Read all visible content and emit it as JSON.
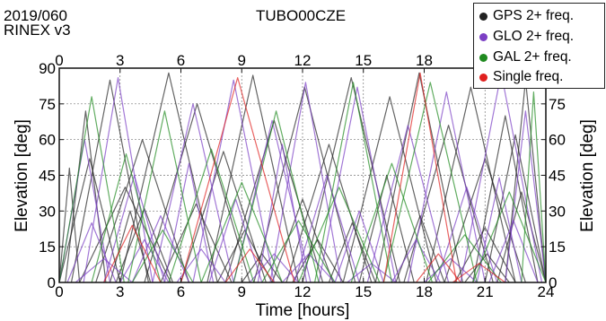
{
  "header": {
    "date": "2019/060",
    "rinex": "RINEX v3",
    "title": "TUBO00CZE"
  },
  "colors": {
    "gps": "#222222",
    "glo": "#7b3fc4",
    "gal": "#1f8a1f",
    "single": "#e0201e"
  },
  "chart_data": {
    "type": "line",
    "title": "TUBO00CZE",
    "xlabel": "Time [hours]",
    "ylabel": "Elevation [deg]",
    "y2label": "Elevation [deg]",
    "xlim": [
      0,
      24
    ],
    "ylim": [
      0,
      90
    ],
    "xticks": [
      "0",
      "3",
      "6",
      "9",
      "12",
      "15",
      "18",
      "21",
      "24"
    ],
    "xticks_top": [
      "0",
      "3",
      "6",
      "9",
      "12",
      "15",
      "18",
      "21",
      "24"
    ],
    "yticks": [
      "0",
      "15",
      "30",
      "45",
      "60",
      "75",
      "90"
    ],
    "yticks_right": [
      "0",
      "15",
      "30",
      "45",
      "60",
      "75",
      "90"
    ],
    "grid": true,
    "legend_position": "top-right",
    "legend": [
      {
        "key": "gps",
        "label": "GPS 2+ freq."
      },
      {
        "key": "glo",
        "label": "GLO 2+ freq."
      },
      {
        "key": "gal",
        "label": "GAL 2+ freq."
      },
      {
        "key": "single",
        "label": "Single freq."
      }
    ],
    "series": [
      {
        "name": "GPS 2+ freq.",
        "key": "gps",
        "passes": [
          [
            0.0,
            1.0,
            48
          ],
          [
            0.3,
            2.3,
            72
          ],
          [
            0.6,
            4.4,
            85
          ],
          [
            1.0,
            5.5,
            40
          ],
          [
            1.8,
            6.4,
            60
          ],
          [
            2.5,
            4.5,
            30
          ],
          [
            3.0,
            7.8,
            88
          ],
          [
            4.2,
            9.4,
            75
          ],
          [
            5.0,
            8.5,
            33
          ],
          [
            6.0,
            10.2,
            55
          ],
          [
            7.3,
            11.8,
            87
          ],
          [
            8.2,
            13.0,
            68
          ],
          [
            9.0,
            11.0,
            12
          ],
          [
            9.6,
            14.6,
            82
          ],
          [
            10.5,
            13.5,
            35
          ],
          [
            11.2,
            15.4,
            58
          ],
          [
            12.0,
            16.8,
            86
          ],
          [
            13.3,
            15.6,
            25
          ],
          [
            14.0,
            18.6,
            78
          ],
          [
            14.8,
            17.5,
            45
          ],
          [
            15.6,
            19.9,
            88
          ],
          [
            16.6,
            19.0,
            28
          ],
          [
            17.0,
            21.4,
            66
          ],
          [
            18.1,
            22.5,
            82
          ],
          [
            19.0,
            23.0,
            52
          ],
          [
            20.0,
            22.2,
            12
          ],
          [
            20.4,
            23.6,
            70
          ],
          [
            21.0,
            24.0,
            62
          ],
          [
            21.6,
            24.0,
            38
          ],
          [
            0.0,
            3.0,
            52
          ],
          [
            2.8,
            5.6,
            31
          ],
          [
            7.8,
            10.5,
            22
          ],
          [
            11.5,
            14.0,
            18
          ],
          [
            19.5,
            22.5,
            23
          ],
          [
            22.0,
            24.0,
            85
          ]
        ]
      },
      {
        "name": "GLO 2+ freq.",
        "key": "glo",
        "passes": [
          [
            0.0,
            2.5,
            60
          ],
          [
            0.8,
            3.6,
            10
          ],
          [
            1.2,
            4.6,
            86
          ],
          [
            2.2,
            5.2,
            45
          ],
          [
            3.6,
            6.4,
            28
          ],
          [
            4.6,
            8.6,
            75
          ],
          [
            5.8,
            8.2,
            14
          ],
          [
            6.6,
            10.6,
            85
          ],
          [
            7.4,
            10.0,
            35
          ],
          [
            8.6,
            12.4,
            68
          ],
          [
            9.4,
            11.8,
            12
          ],
          [
            10.4,
            13.9,
            84
          ],
          [
            11.6,
            14.8,
            45
          ],
          [
            12.8,
            16.6,
            82
          ],
          [
            13.6,
            16.0,
            30
          ],
          [
            15.2,
            19.2,
            66
          ],
          [
            16.4,
            18.8,
            18
          ],
          [
            17.2,
            21.0,
            80
          ],
          [
            18.6,
            21.6,
            40
          ],
          [
            19.8,
            23.8,
            88
          ],
          [
            21.2,
            23.6,
            26
          ],
          [
            22.0,
            24.0,
            72
          ],
          [
            0.4,
            2.8,
            25
          ],
          [
            5.2,
            7.6,
            50
          ],
          [
            9.8,
            12.2,
            58
          ],
          [
            14.2,
            16.6,
            8
          ],
          [
            18.0,
            20.6,
            10
          ],
          [
            20.6,
            22.8,
            44
          ],
          [
            3.0,
            5.4,
            18
          ],
          [
            11.0,
            13.6,
            12
          ]
        ]
      },
      {
        "name": "GAL 2+ freq.",
        "key": "gal",
        "passes": [
          [
            0.0,
            3.2,
            78
          ],
          [
            1.6,
            5.0,
            54
          ],
          [
            3.4,
            7.0,
            72
          ],
          [
            5.4,
            9.6,
            56
          ],
          [
            7.0,
            11.0,
            42
          ],
          [
            8.6,
            12.8,
            72
          ],
          [
            11.8,
            15.8,
            40
          ],
          [
            12.6,
            16.4,
            84
          ],
          [
            14.4,
            18.4,
            50
          ],
          [
            16.0,
            20.6,
            84
          ],
          [
            18.2,
            21.8,
            20
          ],
          [
            20.4,
            24.0,
            38
          ],
          [
            22.8,
            24.0,
            80
          ],
          [
            3.6,
            6.6,
            22
          ],
          [
            10.0,
            13.6,
            26
          ]
        ]
      },
      {
        "name": "Single freq.",
        "key": "single",
        "passes": [
          [
            2.2,
            5.0,
            24
          ],
          [
            6.0,
            11.6,
            86
          ],
          [
            8.2,
            10.6,
            14
          ],
          [
            16.0,
            19.6,
            88
          ],
          [
            17.6,
            19.8,
            12
          ],
          [
            19.4,
            22.0,
            8
          ]
        ]
      }
    ]
  }
}
